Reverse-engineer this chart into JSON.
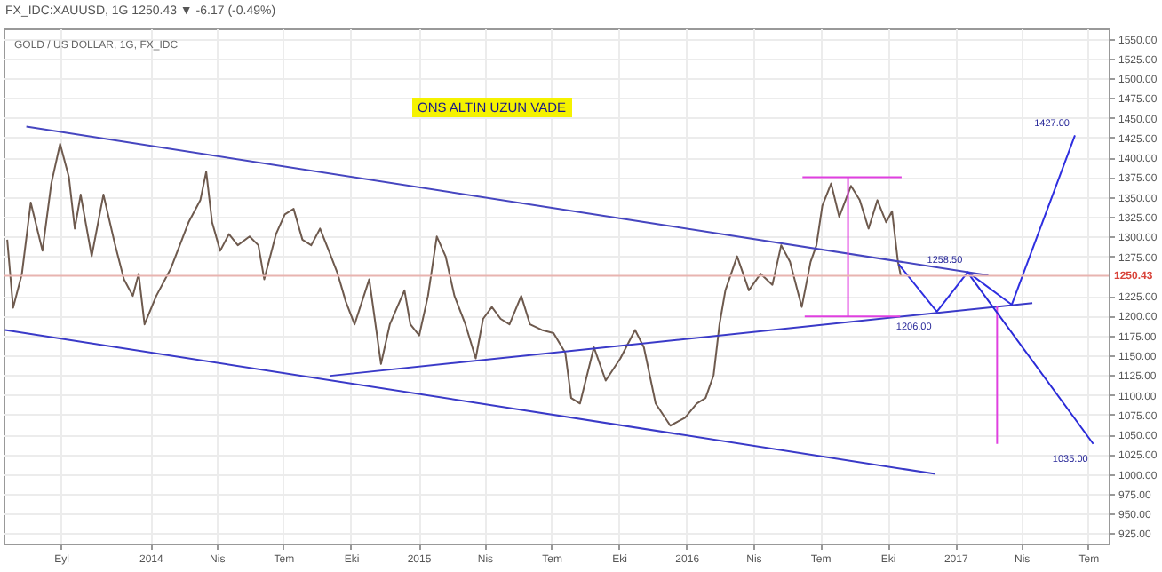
{
  "chart_data": {
    "type": "line",
    "title": "ONS ALTIN UZUN VADE",
    "subtitle": "FX_IDC:XAUUSD, 1G 1250.43 ▼ -6.17 (-0.49%)",
    "annotations": [
      "GOLD / US DOLLAR, 1G, FX_IDC",
      {
        "text": "1427.00",
        "x": "2017-06-13",
        "y": 1428
      },
      {
        "text": "1258.50",
        "x": "2017-01-18",
        "y": 1255
      },
      {
        "text": "1206.00",
        "x": "2016-12-07",
        "y": 1205
      },
      {
        "text": "1035.00",
        "x": "2017-07-08",
        "y": 1038
      }
    ],
    "xlim": [
      "2013-06-15",
      "2017-07-29"
    ],
    "xticks": [
      {
        "value": "2013-09-01",
        "label": "Eyl"
      },
      {
        "value": "2014-01-01",
        "label": "2014"
      },
      {
        "value": "2014-04-01",
        "label": "Nis"
      },
      {
        "value": "2014-07-01",
        "label": "Tem"
      },
      {
        "value": "2014-10-01",
        "label": "Eki"
      },
      {
        "value": "2015-01-01",
        "label": "2015"
      },
      {
        "value": "2015-04-01",
        "label": "Nis"
      },
      {
        "value": "2015-07-01",
        "label": "Tem"
      },
      {
        "value": "2015-10-01",
        "label": "Eki"
      },
      {
        "value": "2016-01-01",
        "label": "2016"
      },
      {
        "value": "2016-04-01",
        "label": "Nis"
      },
      {
        "value": "2016-07-01",
        "label": "Tem"
      },
      {
        "value": "2016-10-01",
        "label": "Eki"
      },
      {
        "value": "2017-01-01",
        "label": "2017"
      },
      {
        "value": "2017-04-01",
        "label": "Nis"
      },
      {
        "value": "2017-07-01",
        "label": "Tem"
      }
    ],
    "ylim": [
      912,
      1563
    ],
    "yticks": [
      {
        "value": 925,
        "label": "925.00"
      },
      {
        "value": 950,
        "label": "950.00"
      },
      {
        "value": 975,
        "label": "975.00"
      },
      {
        "value": 1000,
        "label": "1000.00"
      },
      {
        "value": 1025,
        "label": "1025.00"
      },
      {
        "value": 1050,
        "label": "1050.00"
      },
      {
        "value": 1075,
        "label": "1075.00"
      },
      {
        "value": 1100,
        "label": "1100.00"
      },
      {
        "value": 1125,
        "label": "1125.00"
      },
      {
        "value": 1150,
        "label": "1150.00"
      },
      {
        "value": 1175,
        "label": "1175.00"
      },
      {
        "value": 1200,
        "label": "1200.00"
      },
      {
        "value": 1225,
        "label": "1225.00"
      },
      {
        "value": 1275,
        "label": "1275.00"
      },
      {
        "value": 1300,
        "label": "1300.00"
      },
      {
        "value": 1325,
        "label": "1325.00"
      },
      {
        "value": 1350,
        "label": "1350.00"
      },
      {
        "value": 1375,
        "label": "1375.00"
      },
      {
        "value": 1400,
        "label": "1400.00"
      },
      {
        "value": 1425,
        "label": "1425.00"
      },
      {
        "value": 1450,
        "label": "1450.00"
      },
      {
        "value": 1475,
        "label": "1475.00"
      },
      {
        "value": 1500,
        "label": "1500.00"
      },
      {
        "value": 1525,
        "label": "1525.00"
      },
      {
        "value": 1550,
        "label": "1550.00"
      }
    ],
    "grid": true,
    "ref_lines": [
      {
        "axis": "y",
        "value": 1250.43,
        "label": "1250.43",
        "color": "#e8b4b0"
      }
    ],
    "series": [
      {
        "color": "#6e5a4e",
        "x": [
          "2013-06-20",
          "2013-06-28",
          "2013-07-10",
          "2013-07-22",
          "2013-08-07",
          "2013-08-19",
          "2013-08-31",
          "2013-09-12",
          "2013-09-20",
          "2013-09-28",
          "2013-10-13",
          "2013-10-29",
          "2013-11-14",
          "2013-11-26",
          "2013-12-08",
          "2013-12-16",
          "2013-12-24",
          "2014-01-09",
          "2014-01-29",
          "2014-02-22",
          "2014-03-10",
          "2014-03-18",
          "2014-03-26",
          "2014-04-06",
          "2014-04-18",
          "2014-04-30",
          "2014-05-16",
          "2014-05-28",
          "2014-06-05",
          "2014-06-21",
          "2014-07-03",
          "2014-07-15",
          "2014-07-27",
          "2014-08-08",
          "2014-08-20",
          "2014-09-01",
          "2014-09-13",
          "2014-09-24",
          "2014-10-06",
          "2014-10-26",
          "2014-11-11",
          "2014-11-23",
          "2014-12-13",
          "2014-12-21",
          "2015-01-02",
          "2015-01-14",
          "2015-01-26",
          "2015-02-07",
          "2015-02-19",
          "2015-03-06",
          "2015-03-20",
          "2015-03-30",
          "2015-04-11",
          "2015-04-23",
          "2015-05-05",
          "2015-05-21",
          "2015-06-02",
          "2015-06-18",
          "2015-07-04",
          "2015-07-20",
          "2015-07-28",
          "2015-08-09",
          "2015-08-28",
          "2015-09-13",
          "2015-10-03",
          "2015-10-23",
          "2015-11-04",
          "2015-11-20",
          "2015-12-10",
          "2015-12-30",
          "2016-01-15",
          "2016-01-27",
          "2016-02-07",
          "2016-02-15",
          "2016-02-23",
          "2016-03-10",
          "2016-03-26",
          "2016-04-11",
          "2016-04-27",
          "2016-05-09",
          "2016-05-21",
          "2016-06-06",
          "2016-06-18",
          "2016-06-26",
          "2016-07-04",
          "2016-07-16",
          "2016-07-27",
          "2016-08-12",
          "2016-08-24",
          "2016-09-05",
          "2016-09-17",
          "2016-09-29",
          "2016-10-07",
          "2016-10-15",
          "2016-10-19"
        ],
        "values": [
          1296,
          1210,
          1253,
          1343,
          1282,
          1367,
          1417,
          1375,
          1310,
          1353,
          1275,
          1353,
          1289,
          1246,
          1225,
          1253,
          1189,
          1225,
          1260,
          1318,
          1346,
          1382,
          1318,
          1282,
          1303,
          1289,
          1300,
          1289,
          1246,
          1303,
          1328,
          1335,
          1296,
          1289,
          1310,
          1282,
          1253,
          1218,
          1189,
          1246,
          1139,
          1189,
          1232,
          1189,
          1175,
          1225,
          1300,
          1275,
          1225,
          1189,
          1146,
          1196,
          1211,
          1196,
          1189,
          1225,
          1189,
          1182,
          1178,
          1153,
          1096,
          1089,
          1160,
          1118,
          1146,
          1182,
          1160,
          1089,
          1061,
          1071,
          1089,
          1096,
          1125,
          1189,
          1232,
          1275,
          1232,
          1253,
          1239,
          1289,
          1268,
          1211,
          1268,
          1289,
          1339,
          1367,
          1325,
          1364,
          1346,
          1310,
          1346,
          1318,
          1332,
          1268,
          1250
        ]
      },
      {
        "type": "line",
        "color": "#4646c0",
        "x": [
          "2013-07-16",
          "2017-02-15"
        ],
        "values": [
          1439,
          1251
        ]
      },
      {
        "type": "line",
        "color": "#3a3ac8",
        "x": [
          "2013-06-17",
          "2016-12-05"
        ],
        "values": [
          1182,
          1000
        ]
      },
      {
        "type": "line",
        "color": "#3a3ac8",
        "x": [
          "2014-09-03",
          "2017-04-16"
        ],
        "values": [
          1124,
          1216
        ]
      },
      {
        "type": "line",
        "color": "#e040e0",
        "x": [
          "2016-06-07",
          "2016-10-20"
        ],
        "values": [
          1375,
          1375
        ]
      },
      {
        "type": "line",
        "color": "#e040e0",
        "x": [
          "2016-06-10",
          "2016-10-18"
        ],
        "values": [
          1199,
          1199
        ]
      },
      {
        "type": "line",
        "color": "#e040e0",
        "x": [
          "2016-08-08",
          "2016-08-08"
        ],
        "values": [
          1375,
          1199
        ]
      },
      {
        "type": "line",
        "color": "#e040e0",
        "x": [
          "2017-02-27",
          "2017-02-27"
        ],
        "values": [
          1212,
          1038
        ]
      },
      {
        "type": "line",
        "color": "#2f2fe0",
        "x": [
          "2016-10-16",
          "2016-12-07",
          "2017-01-18",
          "2017-03-19",
          "2017-06-13"
        ],
        "values": [
          1265,
          1205,
          1255,
          1214,
          1428
        ]
      },
      {
        "type": "line",
        "color": "#2a2ad8",
        "x": [
          "2017-01-20",
          "2017-07-08"
        ],
        "values": [
          1252,
          1038
        ]
      }
    ]
  }
}
